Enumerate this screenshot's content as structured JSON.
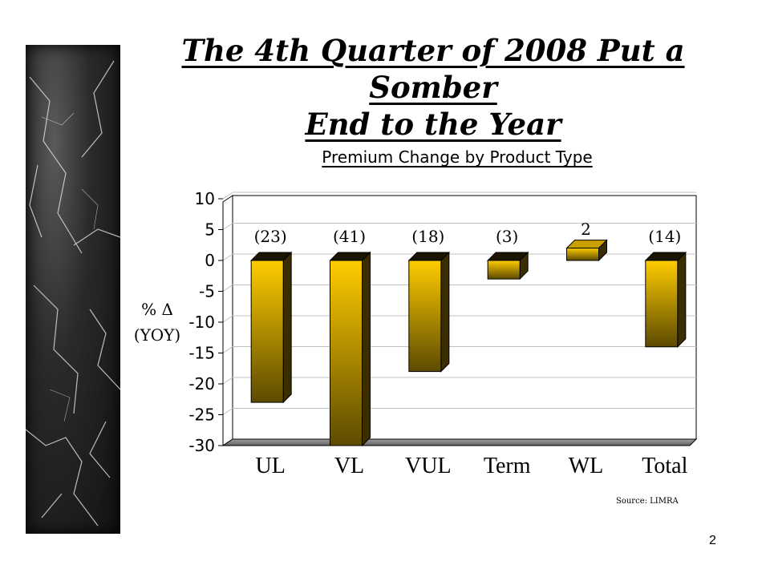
{
  "slide": {
    "title_line1": "The 4th Quarter of 2008 Put a  Somber",
    "title_line2": "End to the Year",
    "source": "Source:  LIMRA",
    "page_number": "2"
  },
  "chart_data": {
    "type": "bar",
    "title": "Premium Change by Product Type",
    "ylabel_line1": "% Δ",
    "ylabel_line2": "(YOY)",
    "xlabel": "",
    "categories": [
      "UL",
      "VL",
      "VUL",
      "Term",
      "WL",
      "Total"
    ],
    "values": [
      -23,
      -41,
      -18,
      -3,
      2,
      -14
    ],
    "data_labels": [
      "(23)",
      "(41)",
      "(18)",
      "(3)",
      "2",
      "(14)"
    ],
    "ylim": [
      -30,
      10
    ],
    "yticks": [
      10,
      5,
      0,
      -5,
      -10,
      -15,
      -20,
      -25,
      -30
    ],
    "grid": true,
    "colors": {
      "bar_top": "#ffcc00",
      "bar_bottom": "#5c4a00",
      "bar_side": "#3a2e00",
      "floor": "#808080",
      "grid": "#c0c0c0"
    }
  }
}
